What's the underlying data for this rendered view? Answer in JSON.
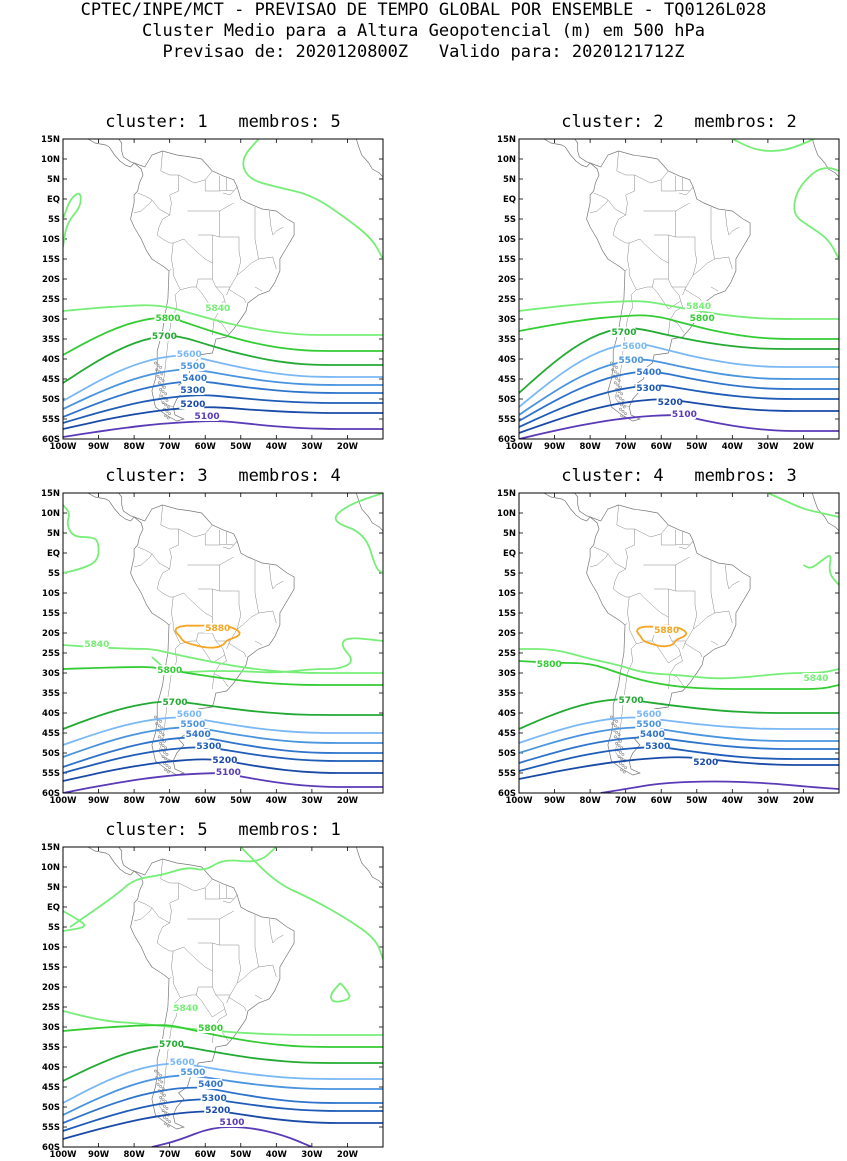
{
  "header": {
    "line1": "CPTEC/INPE/MCT - PREVISAO DE TEMPO GLOBAL POR ENSEMBLE - TQ0126L028",
    "line2": "Cluster Medio para a Altura Geopotencial (m) em 500 hPa",
    "line3": "Previsao de: 2020120800Z   Valido para: 2020121712Z"
  },
  "lat_labels": [
    "15N",
    "10N",
    "5N",
    "EQ",
    "5S",
    "10S",
    "15S",
    "20S",
    "25S",
    "30S",
    "35S",
    "40S",
    "45S",
    "50S",
    "55S",
    "60S"
  ],
  "lon_labels": [
    "100W",
    "90W",
    "80W",
    "70W",
    "60W",
    "50W",
    "40W",
    "30W",
    "20W"
  ],
  "colors": {
    "5880": "#f5a623",
    "5840": "#77ee77",
    "5800": "#33cc33",
    "5700": "#22aa33",
    "5600": "#7ab8f5",
    "5500": "#4a94e0",
    "5400": "#2f74cc",
    "5300": "#1f5cb8",
    "5200": "#1a4aa8",
    "5100": "#5a3ab8"
  },
  "panels": [
    {
      "title": "cluster: 1   membros: 5",
      "contours": [
        {
          "level": "5840",
          "label": "5840"
        },
        {
          "level": "5800",
          "label": "5800"
        },
        {
          "level": "5700",
          "label": "5700"
        },
        {
          "level": "5600",
          "label": "5600"
        },
        {
          "level": "5500",
          "label": "5500"
        },
        {
          "level": "5400",
          "label": "5400"
        },
        {
          "level": "5300",
          "label": "5300"
        },
        {
          "level": "5200",
          "label": "5200"
        },
        {
          "level": "5100",
          "label": "5100"
        }
      ]
    },
    {
      "title": "cluster: 2   membros: 2",
      "contours": [
        {
          "level": "5840",
          "label": "5840"
        },
        {
          "level": "5800",
          "label": "5800"
        },
        {
          "level": "5700",
          "label": "5700"
        },
        {
          "level": "5600",
          "label": "5600"
        },
        {
          "level": "5500",
          "label": "5500"
        },
        {
          "level": "5400",
          "label": "5400"
        },
        {
          "level": "5300",
          "label": "5300"
        },
        {
          "level": "5200",
          "label": "5200"
        },
        {
          "level": "5100",
          "label": "5100"
        }
      ]
    },
    {
      "title": "cluster: 3   membros: 4",
      "contours": [
        {
          "level": "5880",
          "label": "5880"
        },
        {
          "level": "5840",
          "label": "5840"
        },
        {
          "level": "5800",
          "label": "5800"
        },
        {
          "level": "5700",
          "label": "5700"
        },
        {
          "level": "5600",
          "label": "5600"
        },
        {
          "level": "5500",
          "label": "5500"
        },
        {
          "level": "5400",
          "label": "5400"
        },
        {
          "level": "5300",
          "label": "5300"
        },
        {
          "level": "5200",
          "label": "5200"
        },
        {
          "level": "5100",
          "label": "5100"
        }
      ]
    },
    {
      "title": "cluster: 4   membros: 3",
      "contours": [
        {
          "level": "5880",
          "label": "5880"
        },
        {
          "level": "5840",
          "label": "5840"
        },
        {
          "level": "5800",
          "label": "5800"
        },
        {
          "level": "5700",
          "label": "5700"
        },
        {
          "level": "5600",
          "label": "5600"
        },
        {
          "level": "5500",
          "label": "5500"
        },
        {
          "level": "5400",
          "label": "5400"
        },
        {
          "level": "5300",
          "label": "5300"
        },
        {
          "level": "5200",
          "label": "5200"
        }
      ]
    },
    {
      "title": "cluster: 5   membros: 1",
      "contours": [
        {
          "level": "5840",
          "label": "5840"
        },
        {
          "level": "5800",
          "label": "5800"
        },
        {
          "level": "5700",
          "label": "5700"
        },
        {
          "level": "5600",
          "label": "5600"
        },
        {
          "level": "5500",
          "label": "5500"
        },
        {
          "level": "5400",
          "label": "5400"
        },
        {
          "level": "5300",
          "label": "5300"
        },
        {
          "level": "5200",
          "label": "5200"
        },
        {
          "level": "5100",
          "label": "5100"
        }
      ]
    }
  ]
}
